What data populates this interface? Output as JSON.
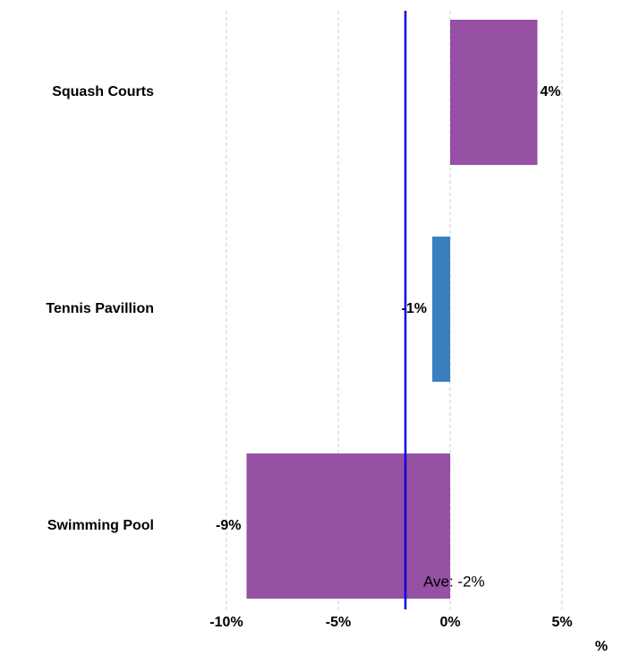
{
  "chart_data": {
    "type": "hbar",
    "categories": [
      "Squash Courts",
      "Tennis Pavillion",
      "Swimming Pool"
    ],
    "values": [
      3.9,
      -0.8,
      -9.1
    ],
    "value_labels": [
      "4%",
      "-1%",
      "-9%"
    ],
    "colors": [
      "#9650a4",
      "#3a7fc0",
      "#9650a4"
    ],
    "xlim": [
      -10,
      5
    ],
    "xticks": [
      {
        "value": -10,
        "label": "-10%"
      },
      {
        "value": -5,
        "label": "-5%"
      },
      {
        "value": 0,
        "label": "0%"
      },
      {
        "value": 5,
        "label": "5%"
      }
    ],
    "xlabel": "%",
    "grid": true,
    "average": {
      "value": -2,
      "label": "Ave: -2%",
      "color": "#0000e0"
    }
  }
}
